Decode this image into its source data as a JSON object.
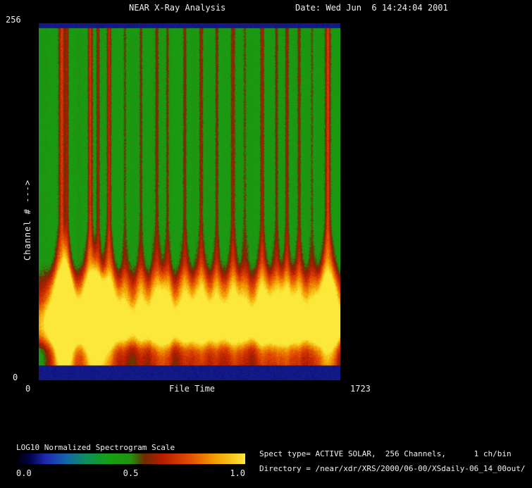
{
  "header": {
    "title": "NEAR X-Ray Analysis",
    "date": "Date: Wed Jun  6 14:24:04 2001"
  },
  "plot": {
    "y_max": "256",
    "y_min": "0",
    "y_label": "Channel # --->",
    "x_min": "0",
    "x_label": "File Time",
    "x_max": "1723"
  },
  "colorbar": {
    "title": "LOG10 Normalized Spectrogram Scale",
    "ticks": [
      "0.0",
      "0.5",
      "1.0"
    ]
  },
  "info": {
    "spect_type": "Spect type= ACTIVE SOLAR,  256 Channels,      1 ch/bin",
    "directory": "Directory = /near/xdr/XRS/2000/06-00/XSdaily-06_14_00out/"
  },
  "chart_data": {
    "type": "heatmap",
    "title": "NEAR X-Ray Analysis",
    "xlabel": "File Time",
    "x_range": [
      0,
      1723
    ],
    "ylabel": "Channel #",
    "y_range": [
      0,
      256
    ],
    "value_scale": {
      "label": "LOG10 Normalized Spectrogram Scale",
      "range": [
        0.0,
        1.0
      ]
    },
    "colormap": [
      [
        0.0,
        "#000000"
      ],
      [
        0.06,
        "#02024a"
      ],
      [
        0.13,
        "#1f2ab4"
      ],
      [
        0.22,
        "#1566a8"
      ],
      [
        0.3,
        "#0e8c62"
      ],
      [
        0.4,
        "#16a014"
      ],
      [
        0.5,
        "#209310"
      ],
      [
        0.56,
        "#6e2a00"
      ],
      [
        0.64,
        "#b81c00"
      ],
      [
        0.76,
        "#e34f00"
      ],
      [
        0.87,
        "#f29e00"
      ],
      [
        1.0,
        "#fce83a"
      ]
    ],
    "background_level": 0.46,
    "edge_band_level": 0.1,
    "low_channel_band": {
      "center_frac": 0.875,
      "sigma": 0.045,
      "amplitude": 0.26,
      "plateau_amplitude": 0.14,
      "note": "bright red/orange/yellow emission band in low channels near bottom of plot"
    },
    "flares": [
      [
        0.075,
        1.0,
        2.6
      ],
      [
        0.092,
        0.7,
        1.8
      ],
      [
        0.17,
        0.95,
        2.2
      ],
      [
        0.195,
        0.6,
        1.6
      ],
      [
        0.232,
        0.8,
        2.0
      ],
      [
        0.285,
        0.4,
        1.5
      ],
      [
        0.338,
        0.45,
        1.5
      ],
      [
        0.39,
        0.55,
        1.8
      ],
      [
        0.425,
        0.5,
        1.5
      ],
      [
        0.483,
        0.55,
        1.8
      ],
      [
        0.537,
        0.6,
        1.8
      ],
      [
        0.59,
        0.5,
        1.6
      ],
      [
        0.642,
        0.55,
        1.8
      ],
      [
        0.682,
        0.4,
        1.5
      ],
      [
        0.74,
        0.65,
        1.9
      ],
      [
        0.787,
        0.5,
        1.6
      ],
      [
        0.822,
        0.55,
        1.6
      ],
      [
        0.862,
        0.5,
        1.6
      ],
      [
        0.905,
        0.35,
        1.4
      ],
      [
        0.958,
        1.0,
        2.4
      ]
    ]
  }
}
